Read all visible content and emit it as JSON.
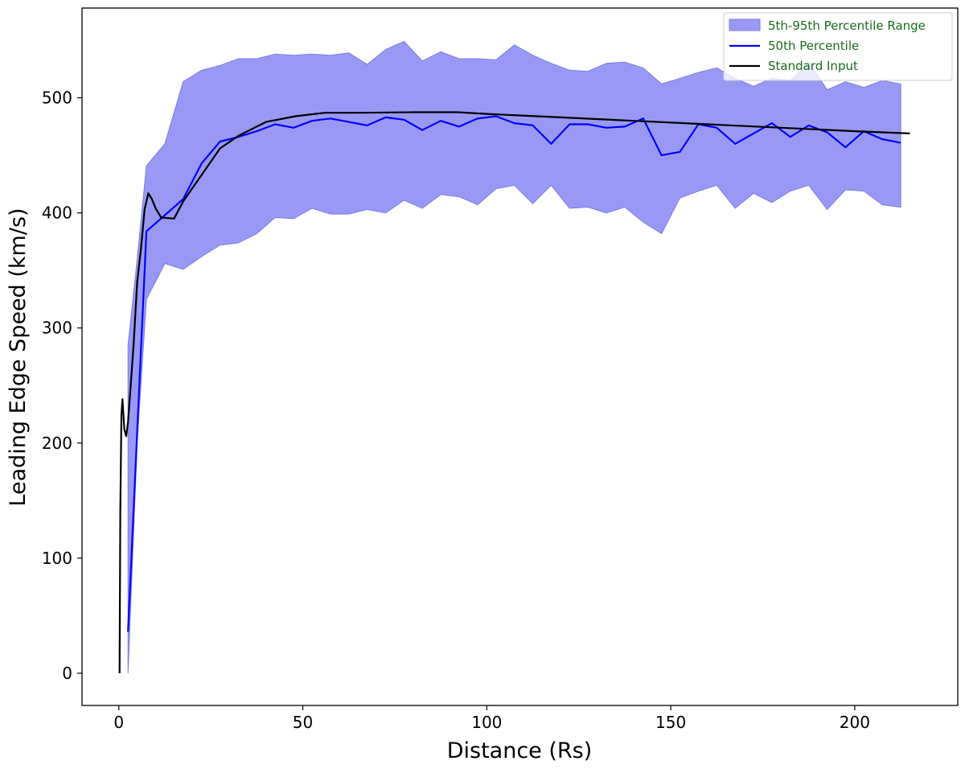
{
  "chart_data": {
    "type": "line",
    "xlabel": "Distance (Rs)",
    "ylabel": "Leading Edge Speed (km/s)",
    "xlim": [
      -10,
      228
    ],
    "ylim": [
      -28,
      578
    ],
    "xticks": [
      0,
      50,
      100,
      150,
      200
    ],
    "yticks": [
      0,
      100,
      200,
      300,
      400,
      500
    ],
    "grid": false,
    "legend_position": "top-right",
    "colors": {
      "band_fill": "#9999f5",
      "band_edge": "#7a7ae6",
      "median": "#0000ff",
      "standard": "#000000",
      "legend_text": "#1a6b1a"
    },
    "band": {
      "name": "5th-95th Percentile Range",
      "x": [
        2.5,
        5,
        7.5,
        12.5,
        17.5,
        22.5,
        27.5,
        32.5,
        37.5,
        42.5,
        47.5,
        52.5,
        57.5,
        62.5,
        67.5,
        72.5,
        77.5,
        82.5,
        87.5,
        92.5,
        97.5,
        102.5,
        107.5,
        112.5,
        117.5,
        122.5,
        127.5,
        132.5,
        137.5,
        142.5,
        147.5,
        152.5,
        157.5,
        162.5,
        167.5,
        172.5,
        177.5,
        182.5,
        187.5,
        192.5,
        197.5,
        202.5,
        207.5,
        212.5
      ],
      "lower": [
        0,
        200,
        325,
        356,
        351,
        362,
        372,
        374,
        382,
        396,
        395,
        404,
        399,
        399,
        403,
        400,
        411,
        404,
        416,
        414,
        407,
        421,
        424,
        408,
        424,
        404,
        405,
        400,
        405,
        392,
        382,
        413,
        419,
        424,
        404,
        417,
        409,
        419,
        424,
        403,
        420,
        419,
        407,
        405
      ],
      "upper": [
        285,
        360,
        441,
        460,
        514,
        524,
        528,
        534,
        534,
        538,
        537,
        538,
        537,
        539,
        529,
        542,
        549,
        532,
        540,
        534,
        534,
        533,
        546,
        537,
        530,
        524,
        523,
        530,
        531,
        526,
        512,
        517,
        522,
        526,
        517,
        510,
        517,
        515,
        531,
        507,
        514,
        509,
        515,
        512
      ]
    },
    "series": [
      {
        "name": "50th Percentile",
        "x": [
          2.5,
          5,
          7.5,
          12.5,
          17.5,
          22.5,
          27.5,
          32.5,
          37.5,
          42.5,
          47.5,
          52.5,
          57.5,
          62.5,
          67.5,
          72.5,
          77.5,
          82.5,
          87.5,
          92.5,
          97.5,
          102.5,
          107.5,
          112.5,
          117.5,
          122.5,
          127.5,
          132.5,
          137.5,
          142.5,
          147.5,
          152.5,
          157.5,
          162.5,
          167.5,
          172.5,
          177.5,
          182.5,
          187.5,
          192.5,
          197.5,
          202.5,
          207.5,
          212.5
        ],
        "values": [
          36,
          210,
          384,
          398,
          412,
          443,
          462,
          466,
          471,
          477,
          474,
          480,
          482,
          479,
          476,
          483,
          481,
          472,
          480,
          475,
          482,
          484,
          478,
          476,
          460,
          477,
          477,
          474,
          475,
          482,
          450,
          453,
          477,
          474,
          460,
          469,
          478,
          466,
          476,
          470,
          457,
          471,
          464,
          461
        ]
      },
      {
        "name": "Standard Input",
        "x": [
          0.2,
          0.4,
          0.7,
          1.0,
          1.5,
          2.0,
          2.5,
          3.0,
          4.0,
          5.0,
          6.0,
          7.0,
          8.0,
          9.0,
          10.0,
          11.5,
          15.0,
          17.5,
          22.5,
          27.5,
          32.5,
          40.0,
          48.0,
          56.0,
          65.0,
          80.0,
          92.0,
          100.0,
          120.0,
          140.0,
          160.0,
          180.0,
          200.0,
          215.0
        ],
        "values": [
          0,
          140,
          225,
          238,
          212,
          206,
          218,
          240,
          285,
          340,
          368,
          403,
          417,
          412,
          404,
          396,
          395,
          410,
          433,
          456,
          467,
          479,
          484,
          487,
          487,
          487.5,
          487.5,
          486,
          483,
          480,
          477,
          474,
          471,
          469
        ]
      }
    ]
  }
}
